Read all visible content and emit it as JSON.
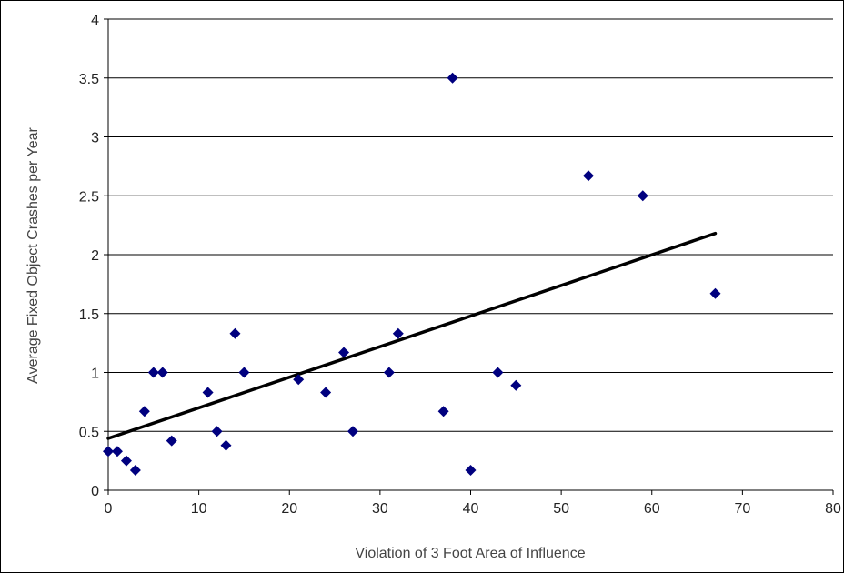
{
  "chart_data": {
    "type": "scatter",
    "title": "",
    "xlabel": "Violation of 3 Foot Area of Influence",
    "ylabel": "Average Fixed Object Crashes per Year",
    "xlim": [
      0,
      80
    ],
    "ylim": [
      0,
      4
    ],
    "x_ticks": [
      "0",
      "10",
      "20",
      "30",
      "40",
      "50",
      "60",
      "70",
      "80"
    ],
    "y_ticks": [
      "0",
      "0.5",
      "1",
      "1.5",
      "2",
      "2.5",
      "3",
      "3.5",
      "4"
    ],
    "grid": "horizontal",
    "legend": "none",
    "marker_color": "#00007f",
    "trendline_color": "#000000",
    "points": [
      {
        "x": 0,
        "y": 0.33
      },
      {
        "x": 1,
        "y": 0.33
      },
      {
        "x": 2,
        "y": 0.25
      },
      {
        "x": 3,
        "y": 0.17
      },
      {
        "x": 4,
        "y": 0.67
      },
      {
        "x": 5,
        "y": 1.0
      },
      {
        "x": 6,
        "y": 1.0
      },
      {
        "x": 7,
        "y": 0.42
      },
      {
        "x": 11,
        "y": 0.83
      },
      {
        "x": 12,
        "y": 0.5
      },
      {
        "x": 13,
        "y": 0.38
      },
      {
        "x": 14,
        "y": 1.33
      },
      {
        "x": 15,
        "y": 1.0
      },
      {
        "x": 21,
        "y": 0.94
      },
      {
        "x": 24,
        "y": 0.83
      },
      {
        "x": 26,
        "y": 1.17
      },
      {
        "x": 27,
        "y": 0.5
      },
      {
        "x": 31,
        "y": 1.0
      },
      {
        "x": 32,
        "y": 1.33
      },
      {
        "x": 37,
        "y": 0.67
      },
      {
        "x": 38,
        "y": 3.5
      },
      {
        "x": 40,
        "y": 0.17
      },
      {
        "x": 43,
        "y": 1.0
      },
      {
        "x": 45,
        "y": 0.89
      },
      {
        "x": 53,
        "y": 2.67
      },
      {
        "x": 59,
        "y": 2.5
      },
      {
        "x": 67,
        "y": 1.67
      }
    ],
    "trendline": {
      "x": [
        0,
        67
      ],
      "y": [
        0.44,
        2.18
      ]
    }
  }
}
